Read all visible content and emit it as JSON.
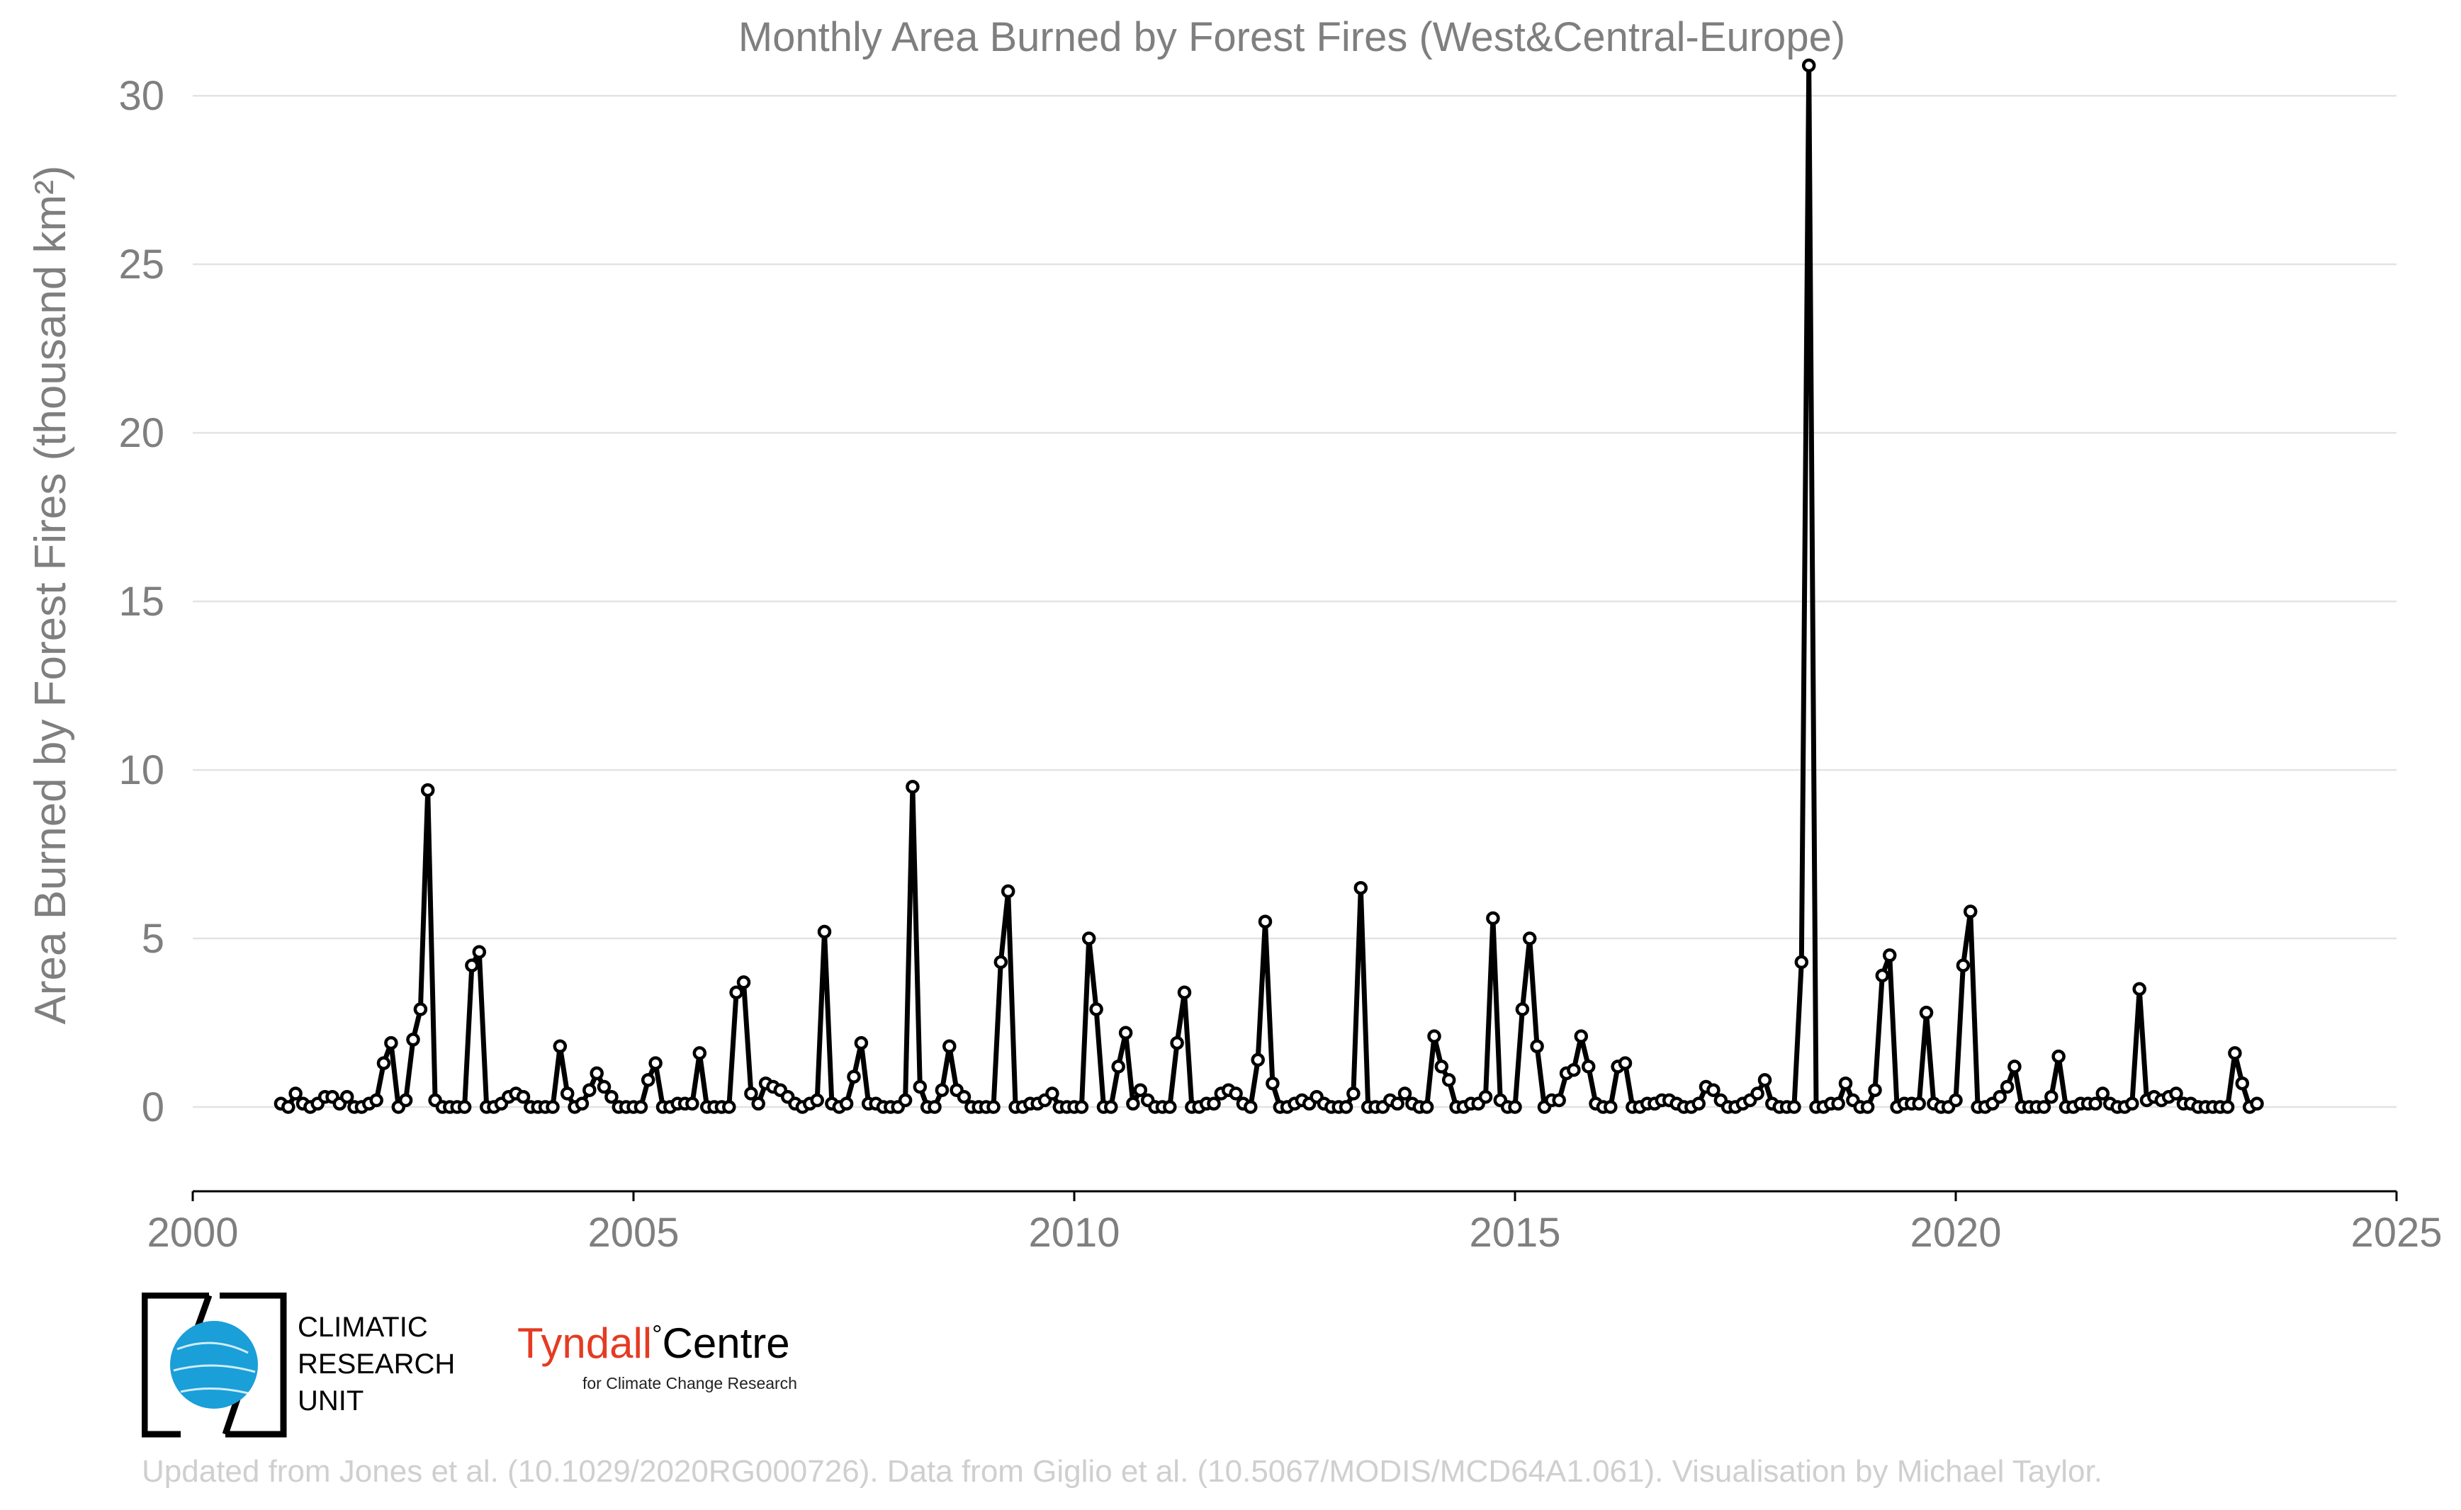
{
  "chart_data": {
    "type": "line",
    "title": "Monthly Area Burned by Forest Fires (West&Central-Europe)",
    "ylabel": "Area Burned by Forest Fires (thousand km²)",
    "xlabel": "",
    "xlim": [
      2000,
      2025
    ],
    "ylim": [
      -2.5,
      32
    ],
    "x_ticks": [
      "2000",
      "2005",
      "2010",
      "2015",
      "2020",
      "2025"
    ],
    "y_ticks": [
      "0",
      "5",
      "10",
      "15",
      "20",
      "25",
      "30"
    ],
    "grid": "horizontal",
    "x_start_year": 2001,
    "series": [
      {
        "name": "",
        "color": "#000000",
        "values": [
          0.1,
          0.0,
          0.4,
          0.1,
          0.0,
          0.1,
          0.3,
          0.3,
          0.1,
          0.3,
          0.0,
          0.0,
          0.1,
          0.2,
          1.3,
          1.9,
          0.0,
          0.2,
          2.0,
          2.9,
          9.4,
          0.2,
          0.0,
          0.0,
          0.0,
          0.0,
          4.2,
          4.6,
          0.0,
          0.0,
          0.1,
          0.3,
          0.4,
          0.3,
          0.0,
          0.0,
          0.0,
          0.0,
          1.8,
          0.4,
          0.0,
          0.1,
          0.5,
          1.0,
          0.6,
          0.3,
          0.0,
          0.0,
          0.0,
          0.0,
          0.8,
          1.3,
          0.0,
          0.0,
          0.1,
          0.1,
          0.1,
          1.6,
          0.0,
          0.0,
          0.0,
          0.0,
          3.4,
          3.7,
          0.4,
          0.1,
          0.7,
          0.6,
          0.5,
          0.3,
          0.1,
          0.0,
          0.1,
          0.2,
          5.2,
          0.1,
          0.0,
          0.1,
          0.9,
          1.9,
          0.1,
          0.1,
          0.0,
          0.0,
          0.0,
          0.2,
          9.5,
          0.6,
          0.0,
          0.0,
          0.5,
          1.8,
          0.5,
          0.3,
          0.0,
          0.0,
          0.0,
          0.0,
          4.3,
          6.4,
          0.0,
          0.0,
          0.1,
          0.1,
          0.2,
          0.4,
          0.0,
          0.0,
          0.0,
          0.0,
          5.0,
          2.9,
          0.0,
          0.0,
          1.2,
          2.2,
          0.1,
          0.5,
          0.2,
          0.0,
          0.0,
          0.0,
          1.9,
          3.4,
          0.0,
          0.0,
          0.1,
          0.1,
          0.4,
          0.5,
          0.4,
          0.1,
          0.0,
          1.4,
          5.5,
          0.7,
          0.0,
          0.0,
          0.1,
          0.2,
          0.1,
          0.3,
          0.1,
          0.0,
          0.0,
          0.0,
          0.4,
          6.5,
          0.0,
          0.0,
          0.0,
          0.2,
          0.1,
          0.4,
          0.1,
          0.0,
          0.0,
          2.1,
          1.2,
          0.8,
          0.0,
          0.0,
          0.1,
          0.1,
          0.3,
          5.6,
          0.2,
          0.0,
          0.0,
          2.9,
          5.0,
          1.8,
          0.0,
          0.2,
          0.2,
          1.0,
          1.1,
          2.1,
          1.2,
          0.1,
          0.0,
          0.0,
          1.2,
          1.3,
          0.0,
          0.0,
          0.1,
          0.1,
          0.2,
          0.2,
          0.1,
          0.0,
          0.0,
          0.1,
          0.6,
          0.5,
          0.2,
          0.0,
          0.0,
          0.1,
          0.2,
          0.4,
          0.8,
          0.1,
          0.0,
          0.0,
          0.0,
          4.3,
          30.9,
          0.0,
          0.0,
          0.1,
          0.1,
          0.7,
          0.2,
          0.0,
          0.0,
          0.5,
          3.9,
          4.5,
          0.0,
          0.1,
          0.1,
          0.1,
          2.8,
          0.1,
          0.0,
          0.0,
          0.2,
          4.2,
          5.8,
          0.0,
          0.0,
          0.1,
          0.3,
          0.6,
          1.2,
          0.0,
          0.0,
          0.0,
          0.0,
          0.3,
          1.5,
          0.0,
          0.0,
          0.1,
          0.1,
          0.1,
          0.4,
          0.1,
          0.0,
          0.0,
          0.1,
          3.5,
          0.2,
          0.3,
          0.2,
          0.3,
          0.4,
          0.1,
          0.1,
          0.0,
          0.0,
          0.0,
          0.0,
          0.0,
          1.6,
          0.7,
          0.0,
          0.1
        ]
      }
    ]
  },
  "logos": {
    "cru": [
      "CLIMATIC",
      "RESEARCH",
      "UNIT"
    ],
    "tyndall_name_red": "Tyndall",
    "tyndall_degree": "°",
    "tyndall_name_black": "Centre",
    "tyndall_sub": "for Climate Change Research"
  },
  "footer": "Updated from Jones et al. (10.1029/2020RG000726). Data from Giglio et al. (10.5067/MODIS/MCD64A1.061). Visualisation by Michael Taylor.",
  "colors": {
    "text_gray": "#7f7f7f",
    "grid": "#e3e3e3",
    "cru_blue": "#1a9fd8",
    "tyndall_red": "#e53b22",
    "footer": "#cfcfcf"
  }
}
